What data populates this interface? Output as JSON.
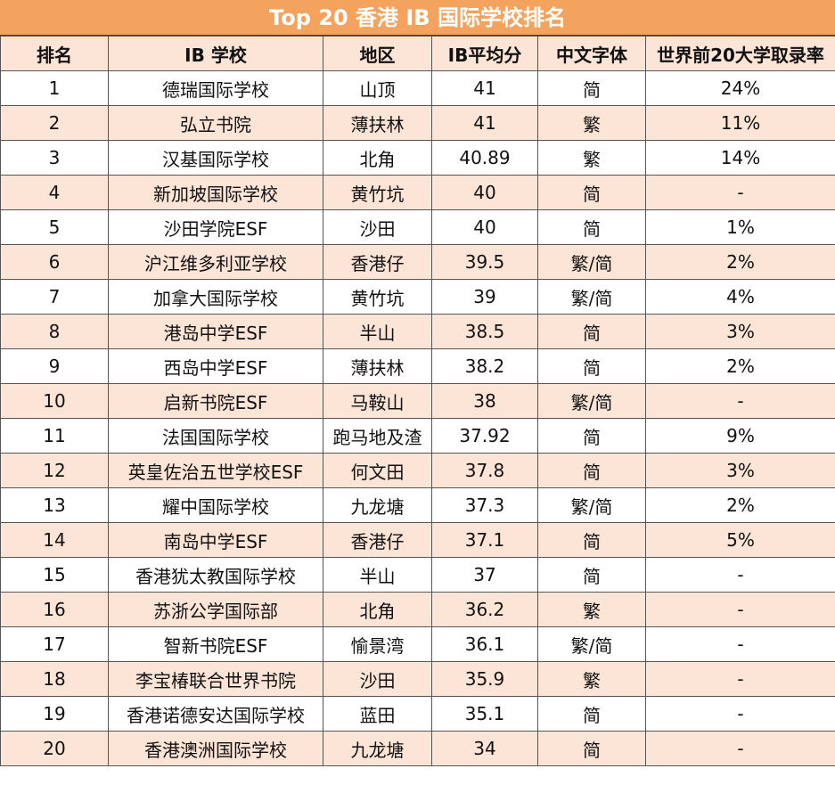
{
  "title": "Top 20 香港 IB 国际学校排名",
  "table": {
    "header": [
      "排名",
      "IB 学校",
      "地区",
      "IB平均分",
      "中文字体",
      "世界前20大学取录率"
    ],
    "rows": [
      [
        "1",
        "德瑞国际学校",
        "山顶",
        "41",
        "简",
        "24%"
      ],
      [
        "2",
        "弘立书院",
        "薄扶林",
        "41",
        "繁",
        "11%"
      ],
      [
        "3",
        "汉基国际学校",
        "北角",
        "40.89",
        "繁",
        "14%"
      ],
      [
        "4",
        "新加坡国际学校",
        "黄竹坑",
        "40",
        "简",
        "-"
      ],
      [
        "5",
        "沙田学院ESF",
        "沙田",
        "40",
        "简",
        "1%"
      ],
      [
        "6",
        "沪江维多利亚学校",
        "香港仔",
        "39.5",
        "繁/简",
        "2%"
      ],
      [
        "7",
        "加拿大国际学校",
        "黄竹坑",
        "39",
        "繁/简",
        "4%"
      ],
      [
        "8",
        "港岛中学ESF",
        "半山",
        "38.5",
        "简",
        "3%"
      ],
      [
        "9",
        "西岛中学ESF",
        "薄扶林",
        "38.2",
        "简",
        "2%"
      ],
      [
        "10",
        "启新书院ESF",
        "马鞍山",
        "38",
        "繁/简",
        "-"
      ],
      [
        "11",
        "法国国际学校",
        "跑马地及渣",
        "37.92",
        "简",
        "9%"
      ],
      [
        "12",
        "英皇佐治五世学校ESF",
        "何文田",
        "37.8",
        "简",
        "3%"
      ],
      [
        "13",
        "耀中国际学校",
        "九龙塘",
        "37.3",
        "繁/简",
        "2%"
      ],
      [
        "14",
        "南岛中学ESF",
        "香港仔",
        "37.1",
        "简",
        "5%"
      ],
      [
        "15",
        "香港犹太教国际学校",
        "半山",
        "37",
        "简",
        "-"
      ],
      [
        "16",
        "苏浙公学国际部",
        "北角",
        "36.2",
        "繁",
        "-"
      ],
      [
        "17",
        "智新书院ESF",
        "愉景湾",
        "36.1",
        "繁/简",
        "-"
      ],
      [
        "18",
        "李宝椿联合世界书院",
        "沙田",
        "35.9",
        "繁",
        "-"
      ],
      [
        "19",
        "香港诺德安达国际学校",
        "蓝田",
        "35.1",
        "简",
        "-"
      ],
      [
        "20",
        "香港澳洲国际学校",
        "九龙塘",
        "34",
        "简",
        "-"
      ]
    ]
  }
}
